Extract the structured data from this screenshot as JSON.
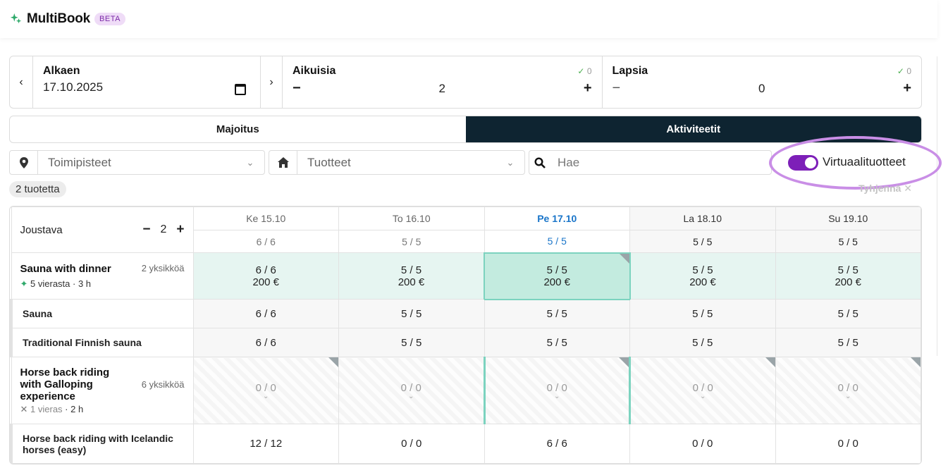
{
  "app": {
    "brand": "MultiBook",
    "badge": "BETA"
  },
  "date": {
    "label": "Alkaen",
    "value": "17.10.2025"
  },
  "adults": {
    "label": "Aikuisia",
    "check": "0",
    "value": "2"
  },
  "children": {
    "label": "Lapsia",
    "check": "0",
    "value": "0"
  },
  "tabs": {
    "accommodation": "Majoitus",
    "activities": "Aktiviteetit"
  },
  "filters": {
    "locations": "Toimipisteet",
    "products": "Tuotteet",
    "search_placeholder": "Hae",
    "virtual_label": "Virtuaalituotteet"
  },
  "result_count": "2 tuotetta",
  "clear_label": "Tyhjennä",
  "flex": {
    "label": "Joustava",
    "value": "2"
  },
  "days": [
    {
      "label": "Ke 15.10",
      "avail": "6 / 6"
    },
    {
      "label": "To 16.10",
      "avail": "5 / 5"
    },
    {
      "label": "Pe 17.10",
      "avail": "5 / 5"
    },
    {
      "label": "La 18.10",
      "avail": "5 / 5"
    },
    {
      "label": "Su 19.10",
      "avail": "5 / 5"
    }
  ],
  "products": [
    {
      "name": "Sauna with dinner",
      "units": "2 yksikköä",
      "guests": "5 vierasta",
      "duration": "3 h",
      "cells": [
        {
          "avail": "6 / 6",
          "price": "200 €"
        },
        {
          "avail": "5 / 5",
          "price": "200 €"
        },
        {
          "avail": "5 / 5",
          "price": "200 €"
        },
        {
          "avail": "5 / 5",
          "price": "200 €"
        },
        {
          "avail": "5 / 5",
          "price": "200 €"
        }
      ],
      "children": [
        {
          "name": "Sauna",
          "cells": [
            "6 / 6",
            "5 / 5",
            "5 / 5",
            "5 / 5",
            "5 / 5"
          ]
        },
        {
          "name": "Traditional Finnish sauna",
          "cells": [
            "6 / 6",
            "5 / 5",
            "5 / 5",
            "5 / 5",
            "5 / 5"
          ]
        }
      ]
    },
    {
      "name": "Horse back riding with Galloping experience",
      "units": "6 yksikköä",
      "guests": "1 vieras",
      "duration": "2 h",
      "cells": [
        "0 / 0",
        "0 / 0",
        "0 / 0",
        "0 / 0",
        "0 / 0"
      ],
      "children": [
        {
          "name": "Horse back riding with Icelandic horses (easy)",
          "cells": [
            "12 / 12",
            "0 / 0",
            "6 / 6",
            "0 / 0",
            "0 / 0"
          ]
        }
      ]
    }
  ],
  "icons": {
    "logo": "sparkle-icon",
    "prev": "chevron-left-icon",
    "next": "chevron-right-icon",
    "calendar": "calendar-icon",
    "location": "map-pin-icon",
    "home": "home-icon",
    "search": "search-icon"
  },
  "colors": {
    "dark": "#0e2431",
    "accent": "#7d1fb8",
    "today": "#1a75c9",
    "green": "#c3ebdf"
  }
}
